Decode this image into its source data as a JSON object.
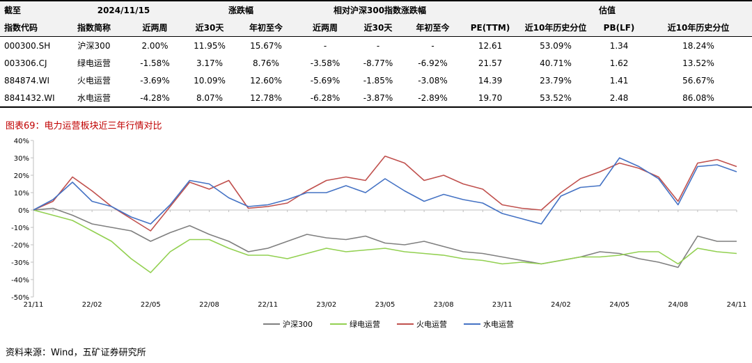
{
  "table": {
    "header1": {
      "date_label": "截至",
      "date_value": "2024/11/15",
      "group_change": "涨跌幅",
      "group_relative": "相对沪深300指数涨跌幅",
      "group_valuation": "估值"
    },
    "header2": [
      "指数代码",
      "指数简称",
      "近两周",
      "近30天",
      "年初至今",
      "近两周",
      "近30天",
      "年初至今",
      "PE(TTM)",
      "近10年历史分位",
      "PB(LF)",
      "近10年历史分位"
    ],
    "rows": [
      [
        "000300.SH",
        "沪深300",
        "2.00%",
        "11.95%",
        "15.67%",
        "-",
        "-",
        "-",
        "12.61",
        "53.09%",
        "1.34",
        "18.24%"
      ],
      [
        "003306.CJ",
        "绿电运营",
        "-1.58%",
        "3.17%",
        "8.76%",
        "-3.58%",
        "-8.77%",
        "-6.92%",
        "21.57",
        "40.71%",
        "1.62",
        "13.52%"
      ],
      [
        "884874.WI",
        "火电运营",
        "-3.69%",
        "10.09%",
        "12.60%",
        "-5.69%",
        "-1.85%",
        "-3.08%",
        "14.39",
        "23.79%",
        "1.41",
        "56.67%"
      ],
      [
        "8841432.WI",
        "水电运营",
        "-4.28%",
        "8.07%",
        "12.78%",
        "-6.28%",
        "-3.87%",
        "-2.89%",
        "19.70",
        "53.52%",
        "2.48",
        "86.08%"
      ]
    ]
  },
  "caption": "图表69：电力运营板块近三年行情对比",
  "source": "资料来源：Wind，五矿证券研究所",
  "chart_data": {
    "type": "line",
    "title": "",
    "xlabel": "",
    "ylabel": "",
    "x_ticks": [
      "21/11",
      "22/02",
      "22/05",
      "22/08",
      "22/11",
      "23/02",
      "23/05",
      "23/08",
      "23/11",
      "24/02",
      "24/05",
      "24/08",
      "24/11"
    ],
    "y_ticks": [
      "40%",
      "30%",
      "20%",
      "10%",
      "0%",
      "-10%",
      "-20%",
      "-30%",
      "-40%",
      "-50%"
    ],
    "ylim": [
      -50,
      40
    ],
    "y_unit": "%",
    "grid": false,
    "legend": "bottom",
    "x": [
      "21/11",
      "21/12",
      "22/01",
      "22/02",
      "22/03",
      "22/04",
      "22/05",
      "22/06",
      "22/07",
      "22/08",
      "22/09",
      "22/10",
      "22/11",
      "22/12",
      "23/01",
      "23/02",
      "23/03",
      "23/04",
      "23/05",
      "23/06",
      "23/07",
      "23/08",
      "23/09",
      "23/10",
      "23/11",
      "23/12",
      "24/01",
      "24/02",
      "24/03",
      "24/04",
      "24/05",
      "24/06",
      "24/07",
      "24/08",
      "24/09",
      "24/10",
      "24/11"
    ],
    "series": [
      {
        "name": "沪深300",
        "color": "#7f7f7f",
        "values": [
          0,
          1,
          -3,
          -8,
          -10,
          -12,
          -18,
          -13,
          -9,
          -14,
          -18,
          -24,
          -22,
          -18,
          -14,
          -16,
          -17,
          -15,
          -19,
          -20,
          -18,
          -21,
          -24,
          -25,
          -27,
          -29,
          -31,
          -29,
          -27,
          -24,
          -25,
          -28,
          -30,
          -33,
          -15,
          -18,
          -18
        ]
      },
      {
        "name": "绿电运营",
        "color": "#92d050",
        "values": [
          0,
          -3,
          -6,
          -12,
          -18,
          -28,
          -36,
          -24,
          -17,
          -17,
          -22,
          -26,
          -26,
          -28,
          -25,
          -22,
          -24,
          -23,
          -22,
          -24,
          -25,
          -26,
          -28,
          -29,
          -31,
          -30,
          -31,
          -29,
          -27,
          -27,
          -26,
          -24,
          -24,
          -31,
          -22,
          -24,
          -25
        ]
      },
      {
        "name": "火电运营",
        "color": "#c0504d",
        "values": [
          0,
          5,
          19,
          11,
          2,
          -5,
          -12,
          2,
          16,
          12,
          17,
          1,
          2,
          4,
          11,
          17,
          19,
          17,
          31,
          27,
          17,
          20,
          15,
          12,
          3,
          1,
          0,
          10,
          18,
          22,
          27,
          24,
          19,
          5,
          27,
          29,
          25
        ]
      },
      {
        "name": "水电运营",
        "color": "#4472c4",
        "values": [
          0,
          6,
          16,
          5,
          2,
          -4,
          -8,
          3,
          17,
          15,
          7,
          2,
          3,
          6,
          10,
          10,
          14,
          10,
          18,
          11,
          5,
          9,
          6,
          4,
          -2,
          -5,
          -8,
          8,
          13,
          14,
          30,
          25,
          18,
          3,
          25,
          26,
          22
        ]
      }
    ]
  }
}
